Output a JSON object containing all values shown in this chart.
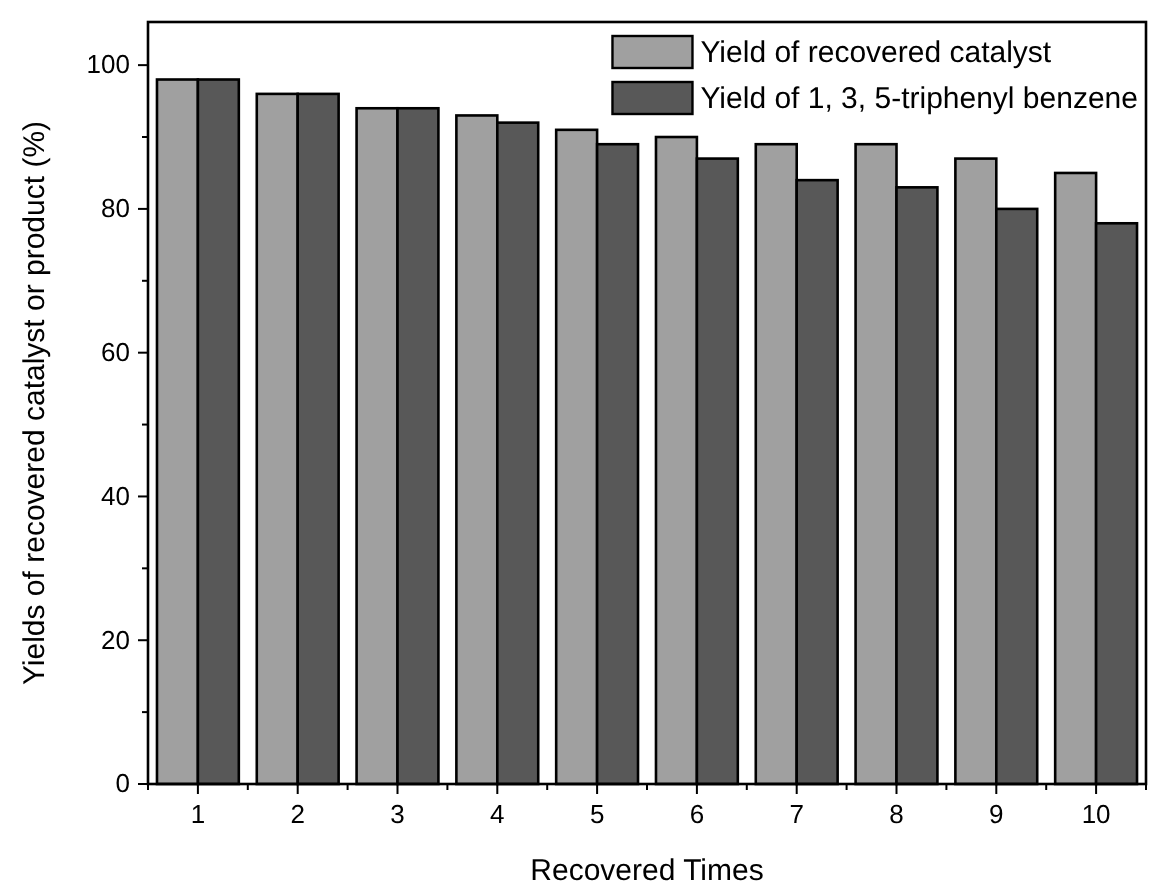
{
  "chart_data": {
    "type": "bar",
    "xlabel": "Recovered Times",
    "ylabel": "Yields of recovered catalyst or product (%)",
    "categories": [
      "1",
      "2",
      "3",
      "4",
      "5",
      "6",
      "7",
      "8",
      "9",
      "10"
    ],
    "series": [
      {
        "name": "Yield of recovered catalyst",
        "color": "#a0a0a0",
        "values": [
          98,
          96,
          94,
          93,
          91,
          90,
          89,
          89,
          87,
          85
        ]
      },
      {
        "name": "Yield of 1, 3, 5-triphenyl benzene",
        "color": "#585858",
        "values": [
          98,
          96,
          94,
          92,
          89,
          87,
          84,
          83,
          80,
          78
        ]
      }
    ],
    "ylim": [
      0,
      106
    ],
    "yticks": [
      0,
      {
        "value": 10,
        "label": null
      },
      20,
      {
        "value": 30,
        "label": null
      },
      40,
      {
        "value": 50,
        "label": null
      },
      60,
      {
        "value": 70,
        "label": null
      },
      80,
      {
        "value": 90,
        "label": null
      },
      100
    ],
    "legend": "top right",
    "grid": false
  }
}
